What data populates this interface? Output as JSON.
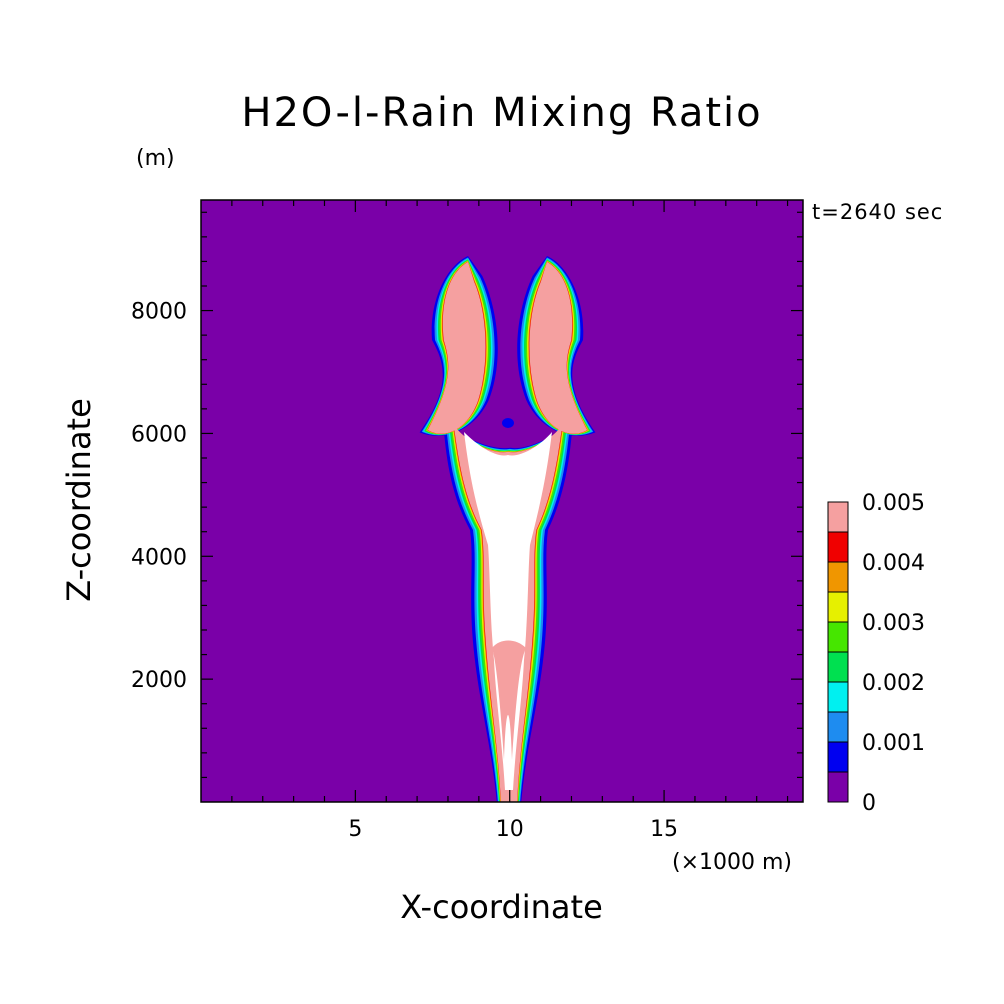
{
  "chart_data": {
    "type": "heatmap",
    "title": "H2O-l-Rain Mixing Ratio",
    "xlabel": "X-coordinate",
    "ylabel": "Z-coordinate",
    "x_unit_label": "(×1000 m)",
    "y_unit_label": "(m)",
    "time_label": "t=2640 sec",
    "xlim": [
      0,
      19.5
    ],
    "ylim": [
      0,
      9800
    ],
    "x_ticks": [
      5,
      10,
      15
    ],
    "x_tick_labels": [
      "5",
      "10",
      "15"
    ],
    "y_ticks": [
      2000,
      4000,
      6000,
      8000
    ],
    "y_tick_labels": [
      "2000",
      "4000",
      "6000",
      "8000"
    ],
    "colorbar": {
      "levels": [
        0,
        0.0005,
        0.001,
        0.0015,
        0.002,
        0.0025,
        0.003,
        0.0035,
        0.004,
        0.0045,
        0.005
      ],
      "colors": [
        "#7a00a8",
        "#0000f0",
        "#1e8cf0",
        "#00f0f0",
        "#00e050",
        "#46e600",
        "#e6f000",
        "#f09600",
        "#f00000",
        "#f5a0a0",
        "#ffffff"
      ],
      "tick_labels": [
        "0",
        "0.001",
        "0.002",
        "0.003",
        "0.004",
        "0.005"
      ]
    },
    "field_description_levels": "contour fill of rain mixing ratio (kg/kg) around a convective plume centered near x=10"
  }
}
